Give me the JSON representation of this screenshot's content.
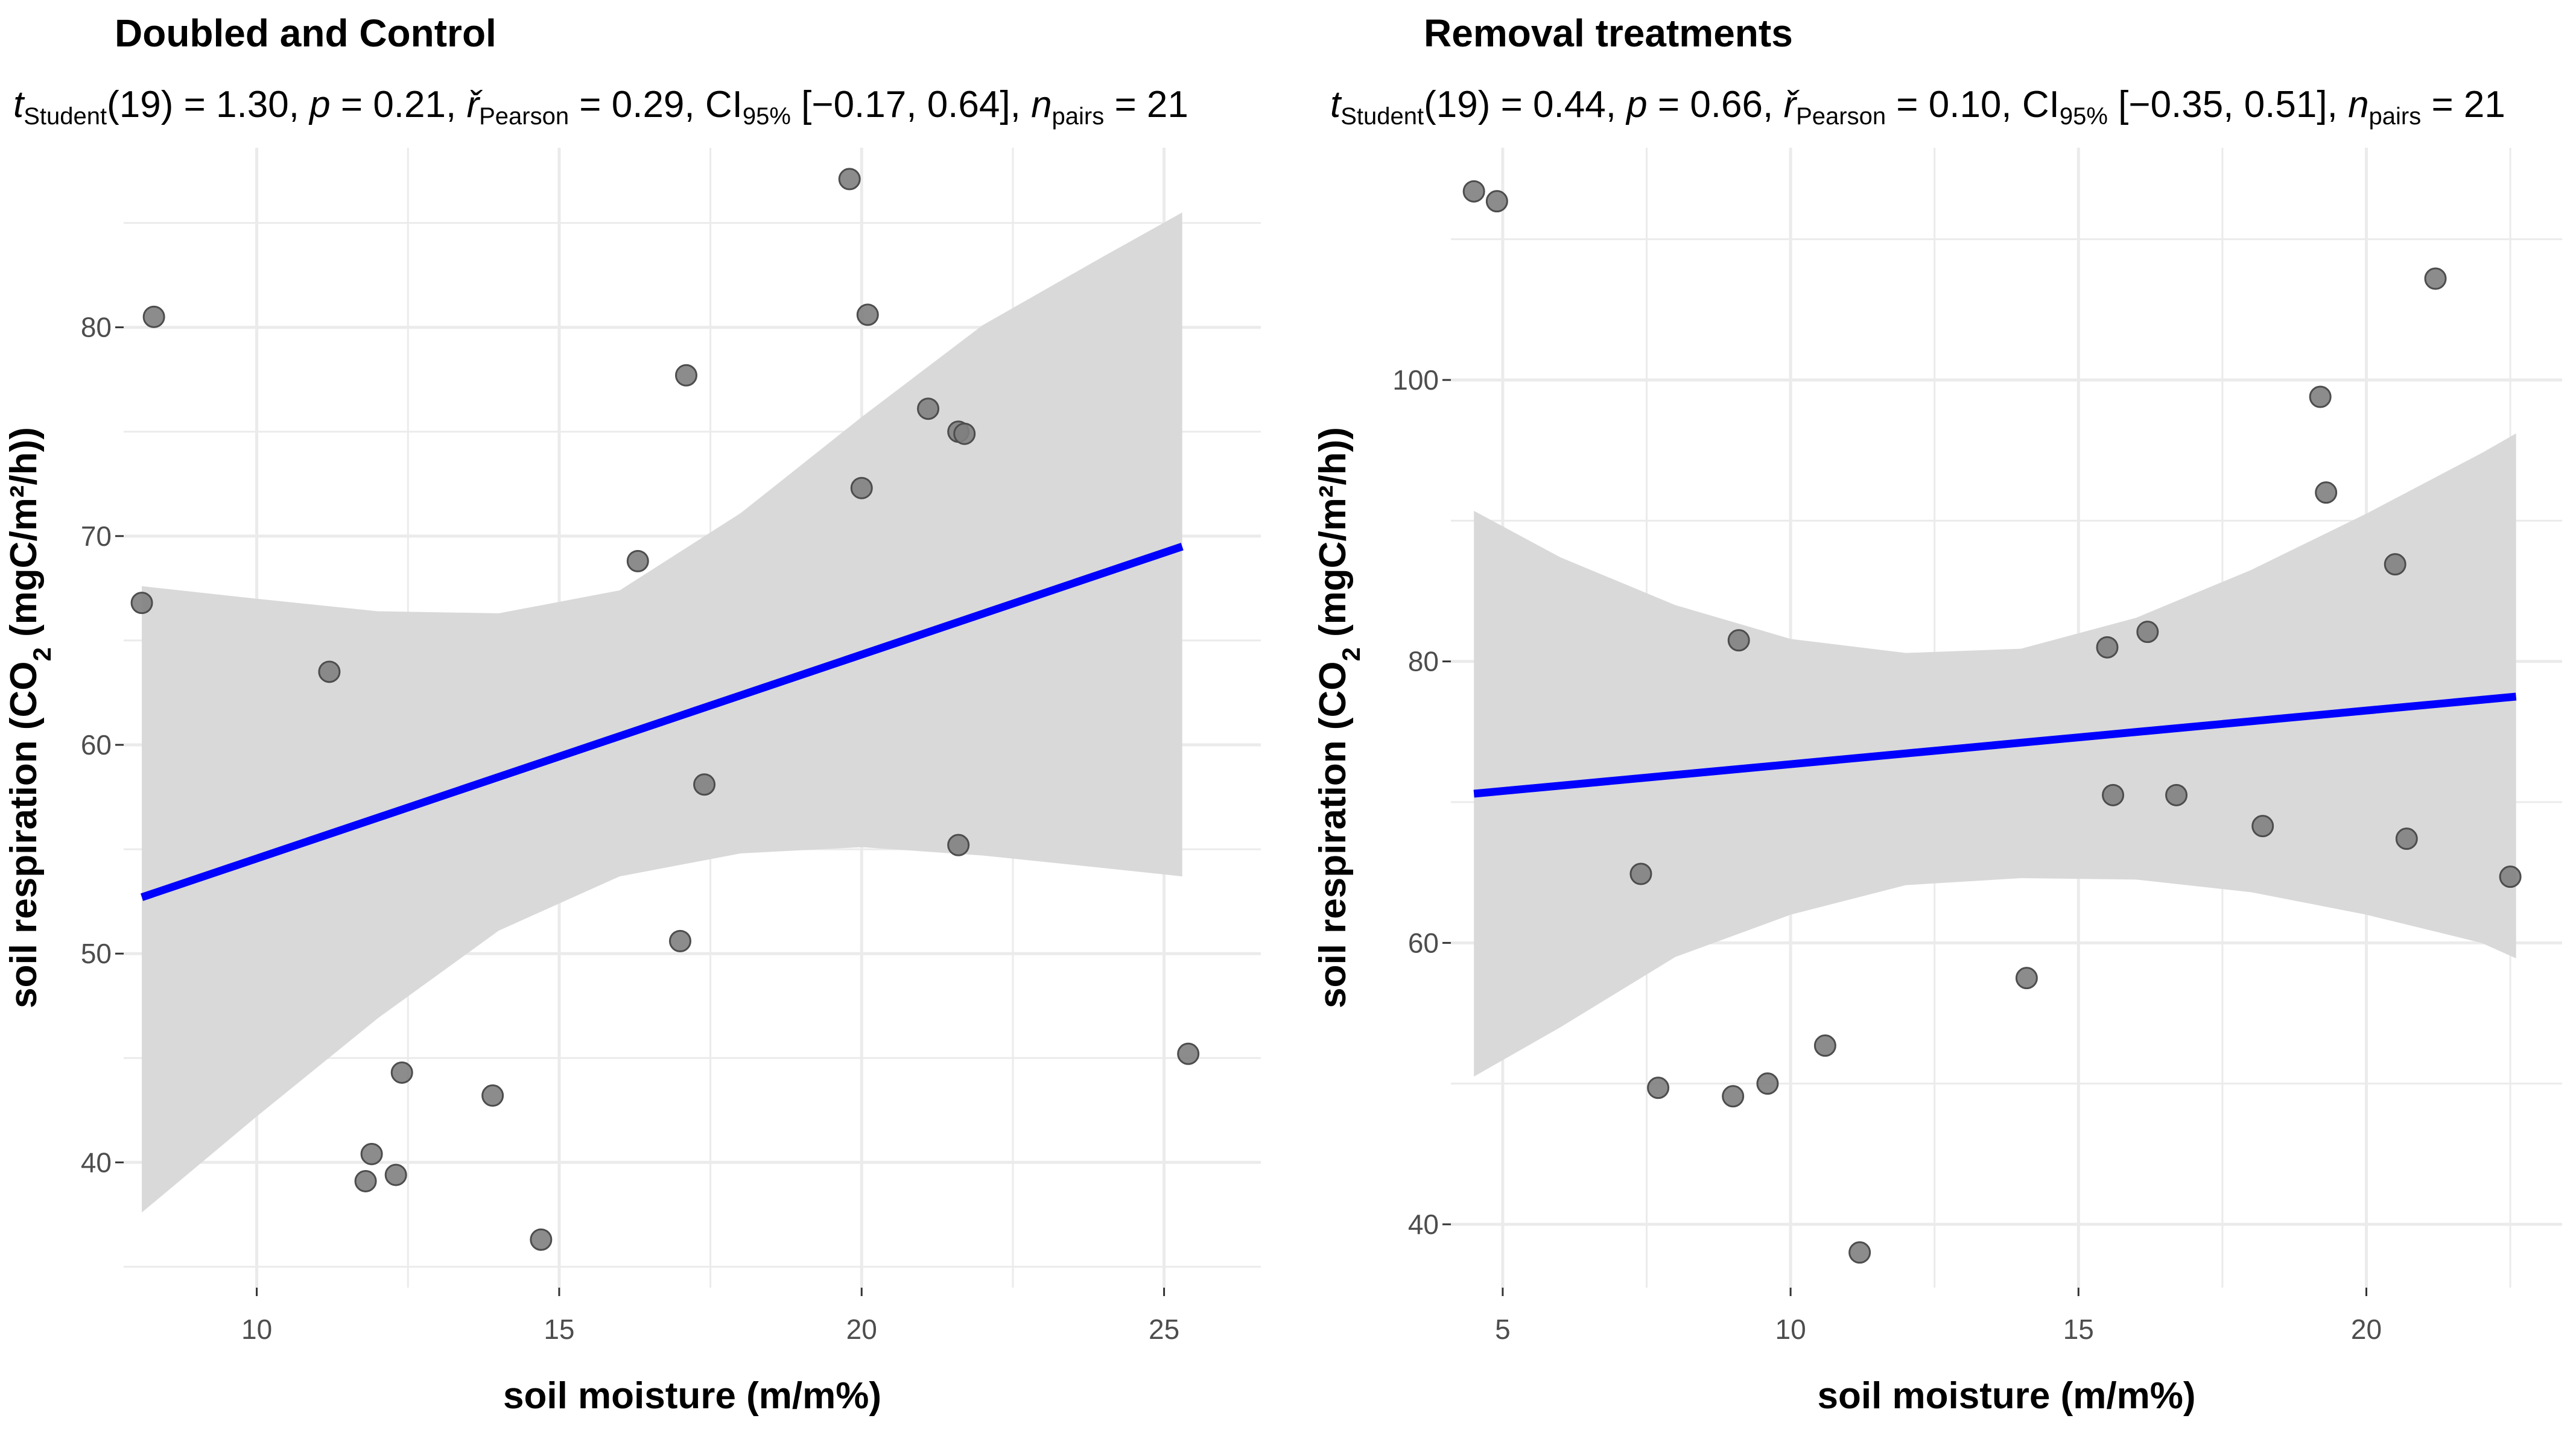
{
  "chart_data": [
    {
      "type": "scatter",
      "title": "Doubled and Control",
      "subtitle": {
        "t_label": "t",
        "t_sub": "Student",
        "t_df": "(19) = 1.30, ",
        "p_label": "p",
        "p_value": " = 0.21, ",
        "r_label": "ř",
        "r_sub": "Pearson",
        "r_value": " = 0.29, ",
        "ci_label": "CI",
        "ci_sub": "95%",
        "ci_value": " [−0.17, 0.64], ",
        "n_label": "n",
        "n_sub": "pairs",
        "n_value": " = 21"
      },
      "xlabel": "soil moisture (m/m%)",
      "ylabel_prefix": "soil respiration (CO",
      "ylabel_sub": "2",
      "ylabel_suffix": " (mgC/m²/h))",
      "xlim": [
        7.8,
        26.6
      ],
      "ylim": [
        34.0,
        88.6
      ],
      "xticks": [
        "10",
        "15",
        "20",
        "25"
      ],
      "xtick_values": [
        10,
        15,
        20,
        25
      ],
      "yticks": [
        "40",
        "50",
        "60",
        "70",
        "80"
      ],
      "ytick_values": [
        40,
        50,
        60,
        70,
        80
      ],
      "points": [
        {
          "x": 8.1,
          "y": 66.8
        },
        {
          "x": 8.3,
          "y": 80.5
        },
        {
          "x": 11.2,
          "y": 63.5
        },
        {
          "x": 11.8,
          "y": 39.1
        },
        {
          "x": 11.9,
          "y": 40.4
        },
        {
          "x": 12.3,
          "y": 39.4
        },
        {
          "x": 12.4,
          "y": 44.3
        },
        {
          "x": 13.9,
          "y": 43.2
        },
        {
          "x": 14.7,
          "y": 36.3
        },
        {
          "x": 16.3,
          "y": 68.8
        },
        {
          "x": 17.0,
          "y": 50.6
        },
        {
          "x": 17.1,
          "y": 77.7
        },
        {
          "x": 17.4,
          "y": 58.1
        },
        {
          "x": 19.8,
          "y": 87.1
        },
        {
          "x": 20.0,
          "y": 72.3
        },
        {
          "x": 20.1,
          "y": 80.6
        },
        {
          "x": 21.1,
          "y": 76.1
        },
        {
          "x": 21.6,
          "y": 55.2
        },
        {
          "x": 21.6,
          "y": 75.0
        },
        {
          "x": 21.7,
          "y": 74.9
        },
        {
          "x": 25.4,
          "y": 45.2
        }
      ],
      "fit": {
        "x": [
          8.1,
          25.3
        ],
        "y": [
          52.7,
          69.5
        ]
      },
      "band": {
        "x": [
          8.1,
          10,
          12,
          14,
          16,
          18,
          20,
          22,
          24,
          25.3
        ],
        "upper": [
          67.6,
          67.0,
          66.4,
          66.3,
          67.4,
          71.1,
          75.7,
          80.1,
          83.4,
          85.5
        ],
        "lower": [
          37.6,
          42.2,
          46.9,
          51.1,
          53.7,
          54.8,
          55.1,
          54.7,
          54.1,
          53.7
        ]
      },
      "colors": {
        "points": "#808080",
        "point_stroke": "#4d4d4d",
        "fit": "#0000ff",
        "band": "#d9d9d9",
        "grid": "#ebebeb"
      }
    },
    {
      "type": "scatter",
      "title": "Removal treatments",
      "subtitle": {
        "t_label": "t",
        "t_sub": "Student",
        "t_df": "(19) = 0.44, ",
        "p_label": "p",
        "p_value": " = 0.66, ",
        "r_label": "ř",
        "r_sub": "Pearson",
        "r_value": " = 0.10, ",
        "ci_label": "CI",
        "ci_sub": "95%",
        "ci_value": " [−0.35, 0.51], ",
        "n_label": "n",
        "n_sub": "pairs",
        "n_value": " = 21"
      },
      "xlabel": "soil moisture (m/m%)",
      "ylabel_prefix": "soil respiration (CO",
      "ylabel_sub": "2",
      "ylabel_suffix": " (mgC/m²/h))",
      "xlim": [
        4.1,
        23.4
      ],
      "ylim": [
        35.5,
        116.5
      ],
      "xticks": [
        "5",
        "10",
        "15",
        "20"
      ],
      "xtick_values": [
        5,
        10,
        15,
        20
      ],
      "yticks": [
        "40",
        "60",
        "80",
        "100"
      ],
      "ytick_values": [
        40,
        60,
        80,
        100
      ],
      "points": [
        {
          "x": 4.5,
          "y": 113.4
        },
        {
          "x": 4.9,
          "y": 112.7
        },
        {
          "x": 7.4,
          "y": 64.9
        },
        {
          "x": 7.7,
          "y": 49.7
        },
        {
          "x": 9.0,
          "y": 49.1
        },
        {
          "x": 9.1,
          "y": 81.5
        },
        {
          "x": 9.6,
          "y": 50.0
        },
        {
          "x": 10.6,
          "y": 52.7
        },
        {
          "x": 11.2,
          "y": 38.0
        },
        {
          "x": 14.1,
          "y": 57.5
        },
        {
          "x": 15.5,
          "y": 81.0
        },
        {
          "x": 15.6,
          "y": 70.5
        },
        {
          "x": 16.2,
          "y": 82.1
        },
        {
          "x": 16.7,
          "y": 70.5
        },
        {
          "x": 18.2,
          "y": 68.3
        },
        {
          "x": 19.2,
          "y": 98.8
        },
        {
          "x": 19.3,
          "y": 92.0
        },
        {
          "x": 20.5,
          "y": 86.9
        },
        {
          "x": 20.7,
          "y": 67.4
        },
        {
          "x": 21.2,
          "y": 107.2
        },
        {
          "x": 22.5,
          "y": 64.7
        }
      ],
      "fit": {
        "x": [
          4.5,
          22.6
        ],
        "y": [
          70.6,
          77.5
        ]
      },
      "band": {
        "x": [
          4.5,
          6,
          8,
          10,
          12,
          14,
          16,
          18,
          20,
          22,
          22.6
        ],
        "upper": [
          90.7,
          87.4,
          84.0,
          81.6,
          80.6,
          80.9,
          83.1,
          86.5,
          90.5,
          94.8,
          96.2
        ],
        "lower": [
          50.5,
          54.0,
          59.0,
          62.0,
          64.1,
          64.6,
          64.5,
          63.6,
          62.0,
          60.0,
          58.9
        ]
      },
      "colors": {
        "points": "#808080",
        "point_stroke": "#4d4d4d",
        "fit": "#0000ff",
        "band": "#d9d9d9",
        "grid": "#ebebeb"
      }
    }
  ]
}
